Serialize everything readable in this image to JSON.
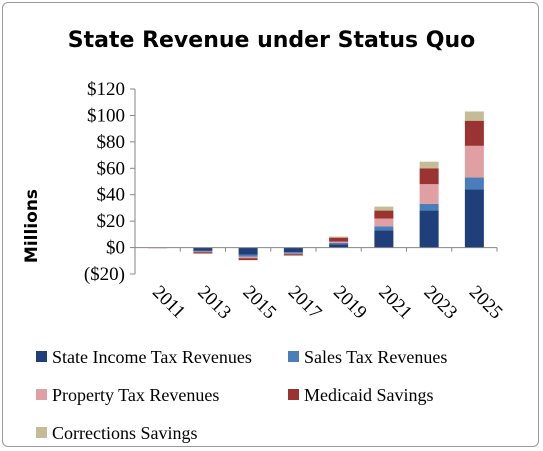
{
  "chart_data": {
    "type": "bar",
    "stacked": true,
    "title": "State Revenue under Status Quo",
    "xlabel": "",
    "ylabel": "Millions",
    "ylim": [
      -20,
      120
    ],
    "y_ticks": [
      -20,
      0,
      20,
      40,
      60,
      80,
      100,
      120
    ],
    "y_tick_labels": [
      "($20)",
      "$0",
      "$20",
      "$40",
      "$60",
      "$80",
      "$100",
      "$120"
    ],
    "categories": [
      "2011",
      "2013",
      "2015",
      "2017",
      "2019",
      "2021",
      "2023",
      "2025"
    ],
    "grid": false,
    "legend_position": "bottom",
    "series": [
      {
        "name": "State Income Tax Revenues",
        "color": "#1f3f7a",
        "values": [
          0,
          -2.5,
          -5.5,
          -3.5,
          2.5,
          13,
          28,
          44
        ]
      },
      {
        "name": "Sales Tax Revenues",
        "color": "#4a7ebb",
        "values": [
          0,
          -0.5,
          -1.5,
          -1,
          1,
          3,
          5,
          9
        ]
      },
      {
        "name": "Property Tax Revenues",
        "color": "#e0a0a3",
        "values": [
          -0.5,
          -0.5,
          -1,
          -0.5,
          1,
          6,
          15,
          24
        ]
      },
      {
        "name": "Medicaid Savings",
        "color": "#9b3333",
        "values": [
          0,
          -1,
          -1.5,
          -1,
          3,
          6,
          12,
          19
        ]
      },
      {
        "name": "Corrections Savings",
        "color": "#c4bc96",
        "values": [
          0,
          0,
          0,
          0,
          0.8,
          3,
          5,
          7
        ]
      }
    ]
  }
}
